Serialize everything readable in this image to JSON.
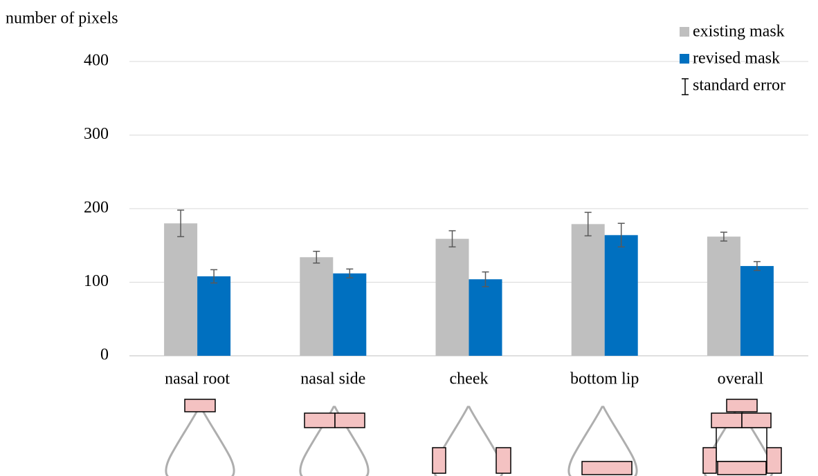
{
  "chart_data": {
    "type": "bar",
    "y_label": "number of pixels",
    "categories": [
      "nasal root",
      "nasal side",
      "cheek",
      "bottom lip",
      "overall"
    ],
    "series": [
      {
        "name": "existing mask",
        "color": "#bfbfbf",
        "values": [
          180,
          134,
          159,
          179,
          162
        ],
        "errors": [
          18,
          8,
          11,
          16,
          6
        ]
      },
      {
        "name": "revised mask",
        "color": "#0070c0",
        "values": [
          108,
          112,
          104,
          164,
          122
        ],
        "errors": [
          9,
          6,
          10,
          16,
          6
        ]
      }
    ],
    "error_bar_label": "standard error",
    "ylim": [
      0,
      400
    ],
    "yticks": [
      0,
      100,
      200,
      300,
      400
    ],
    "grid": true,
    "legend": "top-right"
  }
}
